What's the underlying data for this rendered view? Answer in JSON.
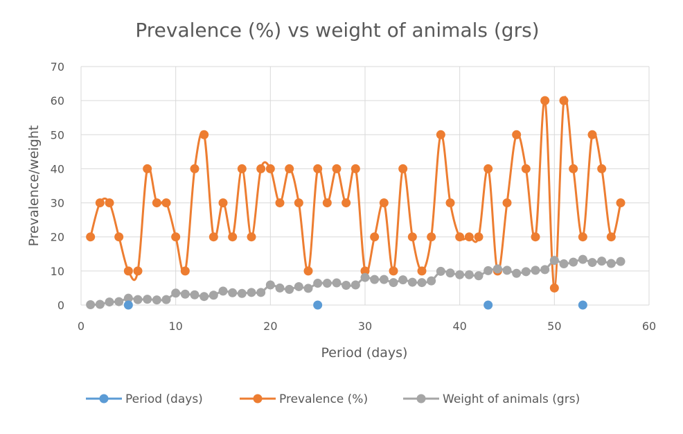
{
  "chart_data": {
    "type": "scatter",
    "title": "Prevalence (%) vs weight of animals (grs)",
    "xlabel": "Period (days)",
    "ylabel": "Prevalence/weight",
    "xlim": [
      0,
      60
    ],
    "ylim": [
      0,
      70
    ],
    "x_ticks": [
      0,
      10,
      20,
      30,
      40,
      50,
      60
    ],
    "y_ticks": [
      0,
      10,
      20,
      30,
      40,
      50,
      60,
      70
    ],
    "grid": true,
    "legend_position": "bottom",
    "series": [
      {
        "name": "Period (days)",
        "color": "#5b9bd5",
        "line": false,
        "points": [
          [
            5,
            0
          ],
          [
            25,
            0
          ],
          [
            43,
            0
          ],
          [
            53,
            0
          ]
        ]
      },
      {
        "name": "Prevalence (%)",
        "color": "#ed7d31",
        "line": true,
        "smooth": true,
        "points": [
          [
            1,
            20
          ],
          [
            2,
            30
          ],
          [
            3,
            30
          ],
          [
            4,
            20
          ],
          [
            5,
            10
          ],
          [
            6,
            10
          ],
          [
            7,
            40
          ],
          [
            8,
            30
          ],
          [
            9,
            30
          ],
          [
            10,
            20
          ],
          [
            11,
            10
          ],
          [
            12,
            40
          ],
          [
            13,
            50
          ],
          [
            14,
            20
          ],
          [
            15,
            30
          ],
          [
            16,
            20
          ],
          [
            17,
            40
          ],
          [
            18,
            20
          ],
          [
            19,
            40
          ],
          [
            20,
            40
          ],
          [
            21,
            30
          ],
          [
            22,
            40
          ],
          [
            23,
            30
          ],
          [
            24,
            10
          ],
          [
            25,
            40
          ],
          [
            26,
            30
          ],
          [
            27,
            40
          ],
          [
            28,
            30
          ],
          [
            29,
            40
          ],
          [
            30,
            10
          ],
          [
            31,
            20
          ],
          [
            32,
            30
          ],
          [
            33,
            10
          ],
          [
            34,
            40
          ],
          [
            35,
            20
          ],
          [
            36,
            10
          ],
          [
            37,
            20
          ],
          [
            38,
            50
          ],
          [
            39,
            30
          ],
          [
            40,
            20
          ],
          [
            41,
            20
          ],
          [
            42,
            20
          ],
          [
            43,
            40
          ],
          [
            44,
            10
          ],
          [
            45,
            30
          ],
          [
            46,
            50
          ],
          [
            47,
            40
          ],
          [
            48,
            20
          ],
          [
            49,
            60
          ],
          [
            50,
            5
          ],
          [
            51,
            60
          ],
          [
            52,
            40
          ],
          [
            53,
            20
          ],
          [
            54,
            50
          ],
          [
            55,
            40
          ],
          [
            56,
            20
          ],
          [
            57,
            30
          ]
        ]
      },
      {
        "name": "Weight of animals (grs)",
        "color": "#a5a5a5",
        "line": true,
        "smooth": true,
        "points": [
          [
            1,
            0.1
          ],
          [
            2,
            0.2
          ],
          [
            3,
            0.9
          ],
          [
            4,
            1.0
          ],
          [
            5,
            2.0
          ],
          [
            6,
            1.6
          ],
          [
            7,
            1.7
          ],
          [
            8,
            1.5
          ],
          [
            9,
            1.6
          ],
          [
            10,
            3.5
          ],
          [
            11,
            3.2
          ],
          [
            12,
            3.0
          ],
          [
            13,
            2.5
          ],
          [
            14,
            2.9
          ],
          [
            15,
            4.1
          ],
          [
            16,
            3.6
          ],
          [
            17,
            3.4
          ],
          [
            18,
            3.7
          ],
          [
            19,
            3.7
          ],
          [
            20,
            5.9
          ],
          [
            21,
            5.0
          ],
          [
            22,
            4.6
          ],
          [
            23,
            5.4
          ],
          [
            24,
            4.9
          ],
          [
            25,
            6.4
          ],
          [
            26,
            6.4
          ],
          [
            27,
            6.5
          ],
          [
            28,
            5.8
          ],
          [
            29,
            5.9
          ],
          [
            30,
            8.1
          ],
          [
            31,
            7.5
          ],
          [
            32,
            7.5
          ],
          [
            33,
            6.6
          ],
          [
            34,
            7.4
          ],
          [
            35,
            6.7
          ],
          [
            36,
            6.6
          ],
          [
            37,
            7.1
          ],
          [
            38,
            9.9
          ],
          [
            39,
            9.4
          ],
          [
            40,
            8.9
          ],
          [
            41,
            8.9
          ],
          [
            42,
            8.6
          ],
          [
            43,
            10.1
          ],
          [
            44,
            10.6
          ],
          [
            45,
            10.2
          ],
          [
            46,
            9.3
          ],
          [
            47,
            9.8
          ],
          [
            48,
            10.2
          ],
          [
            49,
            10.4
          ],
          [
            50,
            13.1
          ],
          [
            51,
            12.1
          ],
          [
            52,
            12.6
          ],
          [
            53,
            13.4
          ],
          [
            54,
            12.5
          ],
          [
            55,
            12.9
          ],
          [
            56,
            12.2
          ],
          [
            57,
            12.8
          ]
        ]
      }
    ]
  }
}
